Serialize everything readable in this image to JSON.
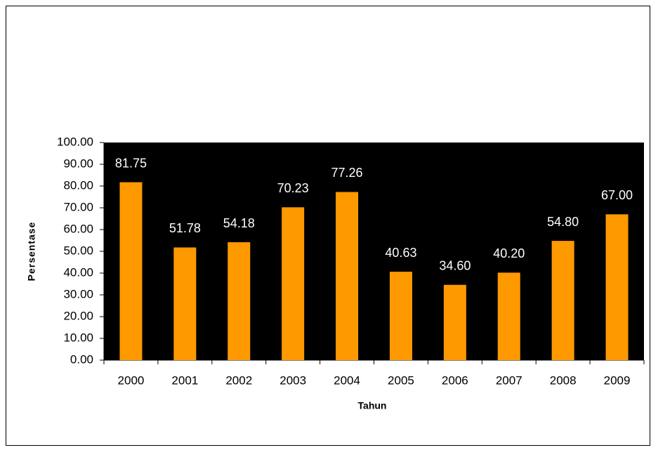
{
  "chart_data": {
    "type": "bar",
    "categories": [
      "2000",
      "2001",
      "2002",
      "2003",
      "2004",
      "2005",
      "2006",
      "2007",
      "2008",
      "2009"
    ],
    "values": [
      81.75,
      51.78,
      54.18,
      70.23,
      77.26,
      40.63,
      34.6,
      40.2,
      54.8,
      67
    ],
    "value_labels": [
      "81.75",
      "51.78",
      "54.18",
      "70.23",
      "77.26",
      "40.63",
      "34.60",
      "40.20",
      "54.80",
      "67.00"
    ],
    "color": "#ff9900",
    "plot_background": "#000000",
    "x_label": "Tahun",
    "y_label": "Persentase",
    "ylim": [
      0,
      100
    ],
    "yticks": [
      {
        "value": 0,
        "label": "0.00"
      },
      {
        "value": 10,
        "label": "10.00"
      },
      {
        "value": 20,
        "label": "20.00"
      },
      {
        "value": 30,
        "label": "30.00"
      },
      {
        "value": 40,
        "label": "40.00"
      },
      {
        "value": 50,
        "label": "50.00"
      },
      {
        "value": 60,
        "label": "60.00"
      },
      {
        "value": 70,
        "label": "70.00"
      },
      {
        "value": 80,
        "label": "80.00"
      },
      {
        "value": 90,
        "label": "90.00"
      },
      {
        "value": 100,
        "label": "100.00"
      }
    ],
    "grid": false
  }
}
